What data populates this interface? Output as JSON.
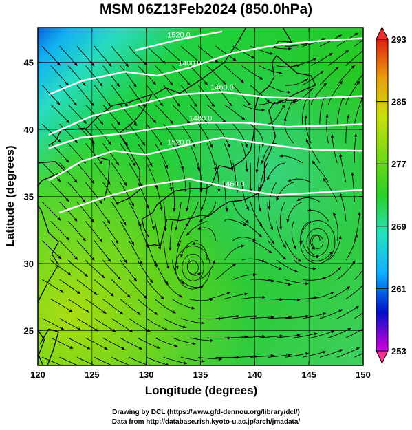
{
  "chart_data": {
    "type": "heatmap",
    "title": "MSM 06Z13Feb2024 (850.0hPa)",
    "xlabel": "Longitude (degrees)",
    "ylabel": "Latitude  (degrees)",
    "xlim": [
      120,
      150
    ],
    "ylim": [
      22.4,
      47.6
    ],
    "xticks": [
      120,
      125,
      130,
      135,
      140,
      145,
      150
    ],
    "yticks": [
      25,
      30,
      35,
      40,
      45
    ],
    "grid": true,
    "colorbar": {
      "ticks": [
        293,
        285,
        277,
        269,
        261,
        253
      ],
      "min": 253,
      "max": 293,
      "colors": [
        "#d800d8",
        "#0010c8",
        "#10b0ff",
        "#28e0c0",
        "#2ad028",
        "#78d818",
        "#c8e010",
        "#e8a010",
        "#e02010"
      ]
    },
    "contours": [
      {
        "label": "1520.0",
        "points": [
          [
            129,
            45.9
          ],
          [
            133,
            46.7
          ],
          [
            137,
            47.3
          ]
        ]
      },
      {
        "label": "1400.0",
        "points": [
          [
            121,
            42.6
          ],
          [
            124,
            43.6
          ],
          [
            128,
            44.3
          ],
          [
            131,
            44.0
          ],
          [
            134,
            44.6
          ],
          [
            138,
            45.7
          ],
          [
            142,
            46.3
          ],
          [
            146,
            46.6
          ],
          [
            150,
            46.8
          ]
        ]
      },
      {
        "label": "1460.0",
        "points": [
          [
            121,
            39.6
          ],
          [
            125,
            41.0
          ],
          [
            129,
            41.8
          ],
          [
            133,
            42.6
          ],
          [
            137,
            42.8
          ],
          [
            141,
            42.4
          ],
          [
            145,
            42.3
          ],
          [
            150,
            42.5
          ]
        ]
      },
      {
        "label": "1480.0",
        "points": [
          [
            121,
            38.6
          ],
          [
            124,
            39.4
          ],
          [
            128,
            39.7
          ],
          [
            131,
            40.1
          ],
          [
            135,
            40.5
          ],
          [
            139,
            40.5
          ],
          [
            143,
            40.2
          ],
          [
            147,
            40.3
          ],
          [
            150,
            40.4
          ]
        ]
      },
      {
        "label": "1520.0",
        "points": [
          [
            121,
            36.2
          ],
          [
            124,
            37.6
          ],
          [
            127,
            38.4
          ],
          [
            130,
            38.1
          ],
          [
            133,
            38.7
          ],
          [
            137,
            39.4
          ],
          [
            141,
            38.9
          ],
          [
            145,
            38.5
          ],
          [
            150,
            38.4
          ]
        ]
      },
      {
        "label": "1460.0",
        "points": [
          [
            122,
            33.8
          ],
          [
            126,
            34.9
          ],
          [
            130,
            35.8
          ],
          [
            134,
            36.3
          ],
          [
            138,
            35.6
          ],
          [
            142,
            35.1
          ],
          [
            146,
            35.3
          ],
          [
            150,
            35.5
          ]
        ]
      }
    ],
    "vortices": [
      {
        "lon": 145.8,
        "lat": 31.6
      },
      {
        "lon": 134.3,
        "lat": 29.7
      }
    ],
    "regions": [
      {
        "name": "Japan",
        "points": [
          [
            130.0,
            31.3
          ],
          [
            130.8,
            31.4
          ],
          [
            131.3,
            31.3
          ],
          [
            131.6,
            32.3
          ],
          [
            131.9,
            33.3
          ],
          [
            133.1,
            33.2
          ],
          [
            134.2,
            33.4
          ],
          [
            135.1,
            33.6
          ],
          [
            135.7,
            33.5
          ],
          [
            136.8,
            34.2
          ],
          [
            137.6,
            34.6
          ],
          [
            138.8,
            34.7
          ],
          [
            139.8,
            35.0
          ],
          [
            140.4,
            35.3
          ],
          [
            140.9,
            36.2
          ],
          [
            140.9,
            37.5
          ],
          [
            141.4,
            38.3
          ],
          [
            141.9,
            39.5
          ],
          [
            141.6,
            40.5
          ],
          [
            141.3,
            41.4
          ],
          [
            141.7,
            41.9
          ],
          [
            142.8,
            42.2
          ],
          [
            143.6,
            42.6
          ],
          [
            144.4,
            42.9
          ],
          [
            145.6,
            43.3
          ],
          [
            145.2,
            44.0
          ],
          [
            143.9,
            44.2
          ],
          [
            142.0,
            45.5
          ],
          [
            141.6,
            45.0
          ],
          [
            141.8,
            43.9
          ],
          [
            141.3,
            43.2
          ],
          [
            140.4,
            42.6
          ],
          [
            140.0,
            41.5
          ],
          [
            140.0,
            40.5
          ],
          [
            139.9,
            39.6
          ],
          [
            139.6,
            38.4
          ],
          [
            138.9,
            37.7
          ],
          [
            137.8,
            37.1
          ],
          [
            136.7,
            37.3
          ],
          [
            136.0,
            35.8
          ],
          [
            135.5,
            35.6
          ],
          [
            134.1,
            35.6
          ],
          [
            132.6,
            35.4
          ],
          [
            131.0,
            34.4
          ],
          [
            130.6,
            33.8
          ],
          [
            129.6,
            33.3
          ],
          [
            129.8,
            32.6
          ],
          [
            130.2,
            32.0
          ]
        ]
      },
      {
        "name": "Korea",
        "points": [
          [
            126.1,
            34.7
          ],
          [
            126.5,
            36.0
          ],
          [
            126.6,
            37.7
          ],
          [
            125.2,
            38.0
          ],
          [
            125.0,
            39.5
          ],
          [
            124.4,
            40.0
          ],
          [
            125.5,
            40.9
          ],
          [
            126.9,
            41.8
          ],
          [
            128.3,
            42.0
          ],
          [
            129.7,
            42.4
          ],
          [
            130.5,
            42.6
          ],
          [
            129.6,
            41.3
          ],
          [
            128.9,
            40.6
          ],
          [
            127.5,
            39.7
          ],
          [
            128.4,
            38.5
          ],
          [
            129.4,
            37.0
          ],
          [
            129.4,
            35.5
          ],
          [
            128.5,
            34.9
          ],
          [
            127.4,
            34.5
          ]
        ]
      },
      {
        "name": "China coast",
        "points": [
          [
            120.0,
            23.0
          ],
          [
            120.6,
            24.3
          ],
          [
            119.7,
            25.4
          ],
          [
            119.7,
            26.6
          ],
          [
            120.3,
            27.6
          ],
          [
            121.0,
            28.7
          ],
          [
            121.9,
            29.9
          ],
          [
            121.3,
            30.7
          ],
          [
            121.9,
            31.6
          ],
          [
            121.0,
            32.3
          ],
          [
            120.3,
            34.0
          ],
          [
            119.3,
            35.0
          ],
          [
            120.4,
            36.2
          ],
          [
            122.5,
            36.9
          ],
          [
            121.6,
            37.6
          ],
          [
            120.0,
            37.5
          ]
        ]
      },
      {
        "name": "Liaodong",
        "points": [
          [
            121.0,
            38.8
          ],
          [
            121.6,
            39.1
          ],
          [
            122.2,
            40.0
          ],
          [
            123.2,
            40.0
          ],
          [
            124.4,
            40.1
          ]
        ]
      },
      {
        "name": "Taiwan",
        "points": [
          [
            120.1,
            23.1
          ],
          [
            120.7,
            22.0
          ],
          [
            121.4,
            23.5
          ],
          [
            121.9,
            24.9
          ],
          [
            121.0,
            25.1
          ],
          [
            120.2,
            24.0
          ]
        ]
      },
      {
        "name": "Sakhalin",
        "points": [
          [
            141.8,
            46.1
          ],
          [
            142.2,
            46.6
          ],
          [
            143.4,
            46.5
          ],
          [
            142.6,
            47.6
          ]
        ]
      },
      {
        "name": "Russia coast",
        "points": [
          [
            130.7,
            42.6
          ],
          [
            131.8,
            43.1
          ],
          [
            133.1,
            42.7
          ],
          [
            135.2,
            43.8
          ],
          [
            137.2,
            45.0
          ],
          [
            138.5,
            46.6
          ],
          [
            139.2,
            47.6
          ]
        ]
      }
    ]
  },
  "title": "MSM 06Z13Feb2024 (850.0hPa)",
  "xlabel": "Longitude (degrees)",
  "ylabel": "Latitude  (degrees)",
  "credits": [
    "Drawing by DCL (https://www.gfd-dennou.org/library/dcl/)",
    "Data from http://database.rish.kyoto-u.ac.jp/arch/jmadata/"
  ]
}
